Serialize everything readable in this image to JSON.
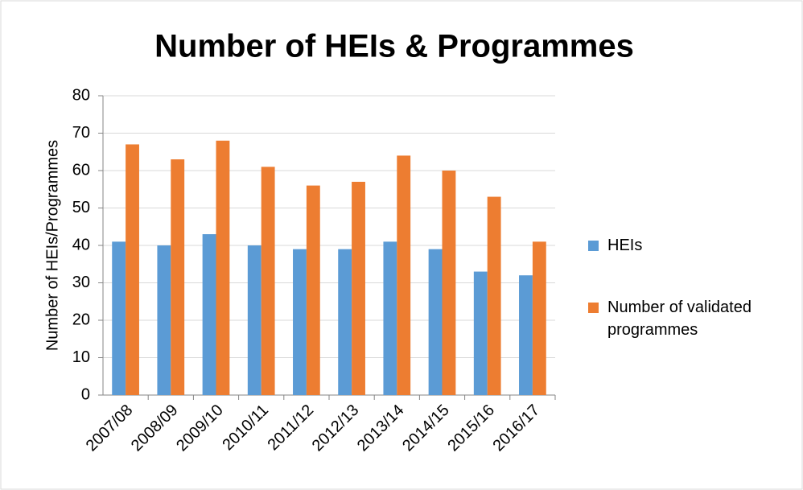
{
  "chart_data": {
    "type": "bar",
    "title": "Number of HEIs & Programmes",
    "y_label": "Number of HEIs/Programmes",
    "categories": [
      "2007/08",
      "2008/09",
      "2009/10",
      "2010/11",
      "2011/12",
      "2012/13",
      "2013/14",
      "2014/15",
      "2015/16",
      "2016/17"
    ],
    "series": [
      {
        "name": "HEIs",
        "color": "#5b9bd5",
        "values": [
          41,
          40,
          43,
          40,
          39,
          39,
          41,
          39,
          33,
          32
        ]
      },
      {
        "name": "Number of validated programmes",
        "color": "#ed7d31",
        "values": [
          67,
          63,
          68,
          61,
          56,
          57,
          64,
          60,
          53,
          41
        ]
      }
    ],
    "ylim": [
      0,
      80
    ],
    "yticks": [
      0,
      10,
      20,
      30,
      40,
      50,
      60,
      70,
      80
    ],
    "grid": true,
    "legend": "right"
  }
}
